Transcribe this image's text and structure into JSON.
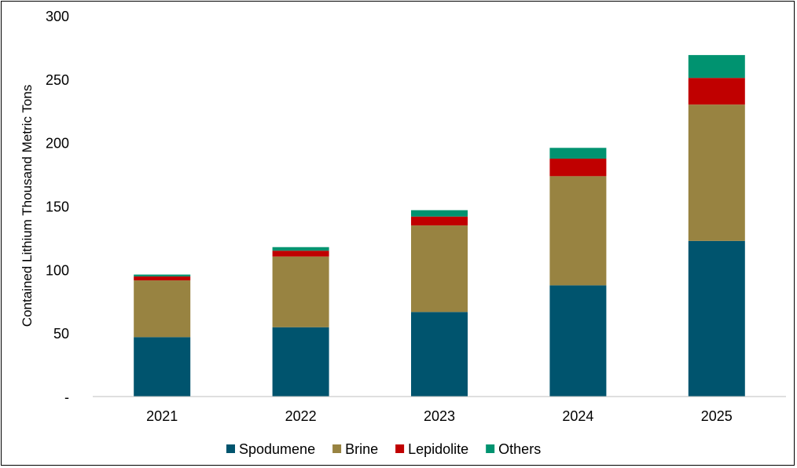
{
  "chart_data": {
    "type": "bar",
    "stacked": true,
    "title": "",
    "xlabel": "",
    "ylabel": "Contained Lithium Thousand Metric Tons",
    "ylim": [
      0,
      300
    ],
    "yticks": [
      0,
      50,
      100,
      150,
      200,
      250,
      300
    ],
    "ytick_labels": [
      "-",
      "50",
      "100",
      "150",
      "200",
      "250",
      "300"
    ],
    "grid": false,
    "legend_position": "bottom",
    "categories": [
      "2021",
      "2022",
      "2023",
      "2024",
      "2025"
    ],
    "series": [
      {
        "name": "Spodumene",
        "color": "#00546E",
        "values": [
          46.8,
          54.6,
          66.6,
          87.6,
          122.6
        ]
      },
      {
        "name": "Brine",
        "color": "#988341",
        "values": [
          44.7,
          55.7,
          68.2,
          86.0,
          107.4
        ]
      },
      {
        "name": "Lepidolite",
        "color": "#C00000",
        "values": [
          3.1,
          4.6,
          7.0,
          13.8,
          21.0
        ]
      },
      {
        "name": "Others",
        "color": "#009370",
        "values": [
          1.5,
          2.8,
          5.0,
          8.5,
          18.0
        ]
      }
    ]
  }
}
